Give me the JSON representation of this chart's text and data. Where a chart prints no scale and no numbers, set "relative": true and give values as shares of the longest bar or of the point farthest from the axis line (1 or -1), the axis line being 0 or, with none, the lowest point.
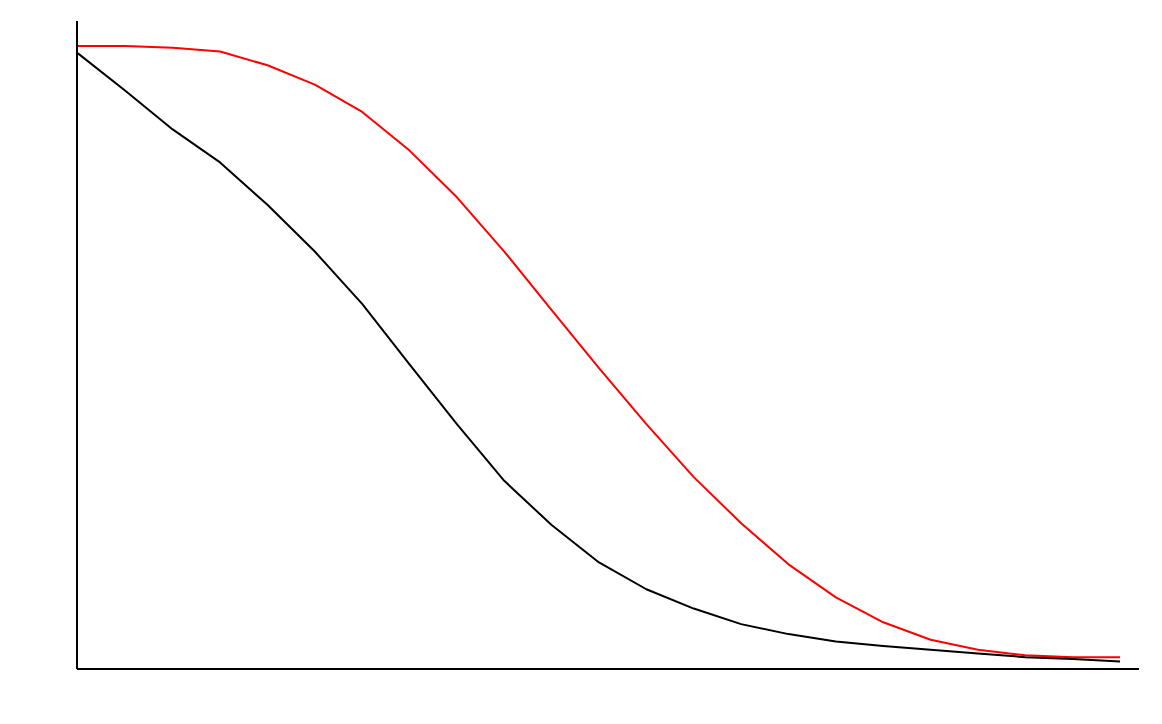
{
  "chart_data": {
    "type": "line",
    "relative": true,
    "categories": [
      null,
      null,
      null,
      null,
      null,
      null,
      null,
      null,
      null,
      null,
      null,
      null,
      null,
      null,
      null,
      null,
      null,
      null,
      null,
      null,
      null,
      null,
      null
    ],
    "series": [
      {
        "color": "#ff0000",
        "values": [
          1,
          1,
          0.997,
          0.991,
          0.969,
          0.938,
          0.894,
          0.832,
          0.757,
          0.67,
          0.576,
          0.483,
          0.393,
          0.308,
          0.234,
          0.168,
          0.115,
          0.075,
          0.047,
          0.031,
          0.022,
          0.019,
          0.019
        ]
      },
      {
        "color": "#000000",
        "values": [
          0.988,
          0.928,
          0.866,
          0.813,
          0.745,
          0.67,
          0.586,
          0.489,
          0.393,
          0.302,
          0.231,
          0.171,
          0.128,
          0.097,
          0.072,
          0.056,
          0.044,
          0.037,
          0.031,
          0.025,
          0.019,
          0.016,
          0.012
        ]
      }
    ],
    "grid": false
  }
}
